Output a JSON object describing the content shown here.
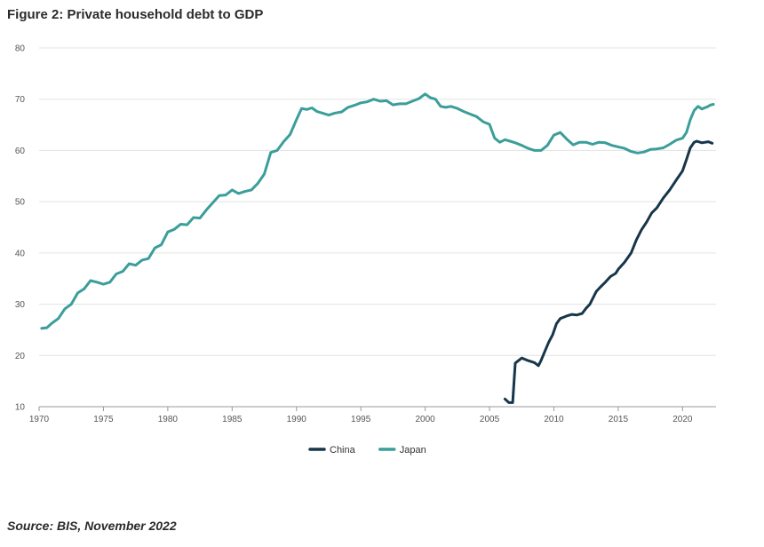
{
  "header": {
    "title": "Figure 2: Private household debt to GDP"
  },
  "footer": {
    "source": "Source: BIS, November 2022"
  },
  "chart_data": {
    "type": "line",
    "title": "Figure 2: Private household debt to GDP",
    "xlabel": "",
    "ylabel": "",
    "xlim": [
      1970,
      2022.6
    ],
    "ylim": [
      10,
      80
    ],
    "xticks": [
      1970,
      1975,
      1980,
      1985,
      1990,
      1995,
      2000,
      2005,
      2010,
      2015,
      2020
    ],
    "yticks": [
      10,
      20,
      30,
      40,
      50,
      60,
      70,
      80
    ],
    "grid": "horizontal",
    "legend_position": "bottom-center",
    "series": [
      {
        "name": "China",
        "color": "#17364a",
        "points": [
          [
            2006.2,
            11.5
          ],
          [
            2006.5,
            10.8
          ],
          [
            2006.8,
            10.8
          ],
          [
            2007.0,
            18.5
          ],
          [
            2007.5,
            19.5
          ],
          [
            2008.0,
            19.0
          ],
          [
            2008.5,
            18.6
          ],
          [
            2008.8,
            18.0
          ],
          [
            2009.0,
            19.0
          ],
          [
            2009.3,
            20.8
          ],
          [
            2009.6,
            22.6
          ],
          [
            2009.9,
            24.0
          ],
          [
            2010.2,
            26.2
          ],
          [
            2010.5,
            27.2
          ],
          [
            2010.8,
            27.5
          ],
          [
            2011.0,
            27.7
          ],
          [
            2011.4,
            28.0
          ],
          [
            2011.8,
            27.9
          ],
          [
            2012.2,
            28.2
          ],
          [
            2012.5,
            29.2
          ],
          [
            2012.8,
            30.0
          ],
          [
            2013.0,
            31.0
          ],
          [
            2013.3,
            32.5
          ],
          [
            2013.6,
            33.3
          ],
          [
            2014.0,
            34.3
          ],
          [
            2014.4,
            35.4
          ],
          [
            2014.8,
            36.0
          ],
          [
            2015.0,
            36.8
          ],
          [
            2015.5,
            38.2
          ],
          [
            2016.0,
            40.0
          ],
          [
            2016.4,
            42.5
          ],
          [
            2016.8,
            44.5
          ],
          [
            2017.2,
            46.0
          ],
          [
            2017.6,
            47.8
          ],
          [
            2018.0,
            48.8
          ],
          [
            2018.5,
            50.7
          ],
          [
            2019.0,
            52.3
          ],
          [
            2019.5,
            54.2
          ],
          [
            2020.0,
            56.0
          ],
          [
            2020.3,
            58.2
          ],
          [
            2020.6,
            60.5
          ],
          [
            2020.9,
            61.6
          ],
          [
            2021.1,
            61.8
          ],
          [
            2021.5,
            61.5
          ],
          [
            2022.0,
            61.7
          ],
          [
            2022.3,
            61.4
          ]
        ]
      },
      {
        "name": "Japan",
        "color": "#3a9e9a",
        "points": [
          [
            1970.2,
            25.3
          ],
          [
            1970.6,
            25.4
          ],
          [
            1971.0,
            26.3
          ],
          [
            1971.5,
            27.2
          ],
          [
            1972.0,
            29.1
          ],
          [
            1972.5,
            30.0
          ],
          [
            1973.0,
            32.2
          ],
          [
            1973.5,
            33.0
          ],
          [
            1974.0,
            34.6
          ],
          [
            1974.5,
            34.3
          ],
          [
            1975.0,
            33.9
          ],
          [
            1975.5,
            34.3
          ],
          [
            1976.0,
            35.9
          ],
          [
            1976.5,
            36.4
          ],
          [
            1977.0,
            37.9
          ],
          [
            1977.5,
            37.6
          ],
          [
            1978.0,
            38.6
          ],
          [
            1978.5,
            38.9
          ],
          [
            1979.0,
            41.0
          ],
          [
            1979.5,
            41.6
          ],
          [
            1980.0,
            44.1
          ],
          [
            1980.5,
            44.6
          ],
          [
            1981.0,
            45.6
          ],
          [
            1981.5,
            45.5
          ],
          [
            1982.0,
            46.9
          ],
          [
            1982.5,
            46.8
          ],
          [
            1983.0,
            48.4
          ],
          [
            1983.5,
            49.8
          ],
          [
            1984.0,
            51.2
          ],
          [
            1984.5,
            51.3
          ],
          [
            1985.0,
            52.3
          ],
          [
            1985.5,
            51.6
          ],
          [
            1986.0,
            52.0
          ],
          [
            1986.5,
            52.3
          ],
          [
            1987.0,
            53.6
          ],
          [
            1987.5,
            55.4
          ],
          [
            1988.0,
            59.6
          ],
          [
            1988.5,
            60.0
          ],
          [
            1989.0,
            61.7
          ],
          [
            1989.5,
            63.1
          ],
          [
            1990.0,
            66.0
          ],
          [
            1990.4,
            68.2
          ],
          [
            1990.8,
            68.0
          ],
          [
            1991.2,
            68.3
          ],
          [
            1991.6,
            67.6
          ],
          [
            1992.0,
            67.3
          ],
          [
            1992.5,
            66.9
          ],
          [
            1993.0,
            67.3
          ],
          [
            1993.5,
            67.5
          ],
          [
            1994.0,
            68.4
          ],
          [
            1994.5,
            68.8
          ],
          [
            1995.0,
            69.3
          ],
          [
            1995.5,
            69.5
          ],
          [
            1996.0,
            70.0
          ],
          [
            1996.5,
            69.6
          ],
          [
            1997.0,
            69.7
          ],
          [
            1997.5,
            68.9
          ],
          [
            1998.0,
            69.1
          ],
          [
            1998.5,
            69.1
          ],
          [
            1999.0,
            69.6
          ],
          [
            1999.5,
            70.1
          ],
          [
            2000.0,
            71.0
          ],
          [
            2000.4,
            70.3
          ],
          [
            2000.8,
            70.0
          ],
          [
            2001.2,
            68.6
          ],
          [
            2001.6,
            68.4
          ],
          [
            2002.0,
            68.6
          ],
          [
            2002.5,
            68.2
          ],
          [
            2003.0,
            67.6
          ],
          [
            2003.5,
            67.1
          ],
          [
            2004.0,
            66.6
          ],
          [
            2004.5,
            65.6
          ],
          [
            2005.0,
            65.1
          ],
          [
            2005.4,
            62.4
          ],
          [
            2005.8,
            61.6
          ],
          [
            2006.2,
            62.1
          ],
          [
            2006.6,
            61.8
          ],
          [
            2007.0,
            61.5
          ],
          [
            2007.5,
            61.0
          ],
          [
            2008.0,
            60.4
          ],
          [
            2008.5,
            60.0
          ],
          [
            2009.0,
            60.0
          ],
          [
            2009.5,
            61.0
          ],
          [
            2010.0,
            63.0
          ],
          [
            2010.5,
            63.5
          ],
          [
            2011.0,
            62.2
          ],
          [
            2011.5,
            61.1
          ],
          [
            2012.0,
            61.6
          ],
          [
            2012.5,
            61.6
          ],
          [
            2013.0,
            61.2
          ],
          [
            2013.5,
            61.6
          ],
          [
            2014.0,
            61.5
          ],
          [
            2014.5,
            61.0
          ],
          [
            2015.0,
            60.7
          ],
          [
            2015.5,
            60.4
          ],
          [
            2016.0,
            59.8
          ],
          [
            2016.5,
            59.5
          ],
          [
            2017.0,
            59.7
          ],
          [
            2017.5,
            60.2
          ],
          [
            2018.0,
            60.3
          ],
          [
            2018.5,
            60.5
          ],
          [
            2019.0,
            61.2
          ],
          [
            2019.5,
            62.0
          ],
          [
            2020.0,
            62.4
          ],
          [
            2020.3,
            63.5
          ],
          [
            2020.6,
            66.0
          ],
          [
            2020.9,
            67.8
          ],
          [
            2021.2,
            68.6
          ],
          [
            2021.5,
            68.1
          ],
          [
            2021.9,
            68.5
          ],
          [
            2022.2,
            68.9
          ],
          [
            2022.4,
            69.0
          ]
        ]
      }
    ]
  }
}
